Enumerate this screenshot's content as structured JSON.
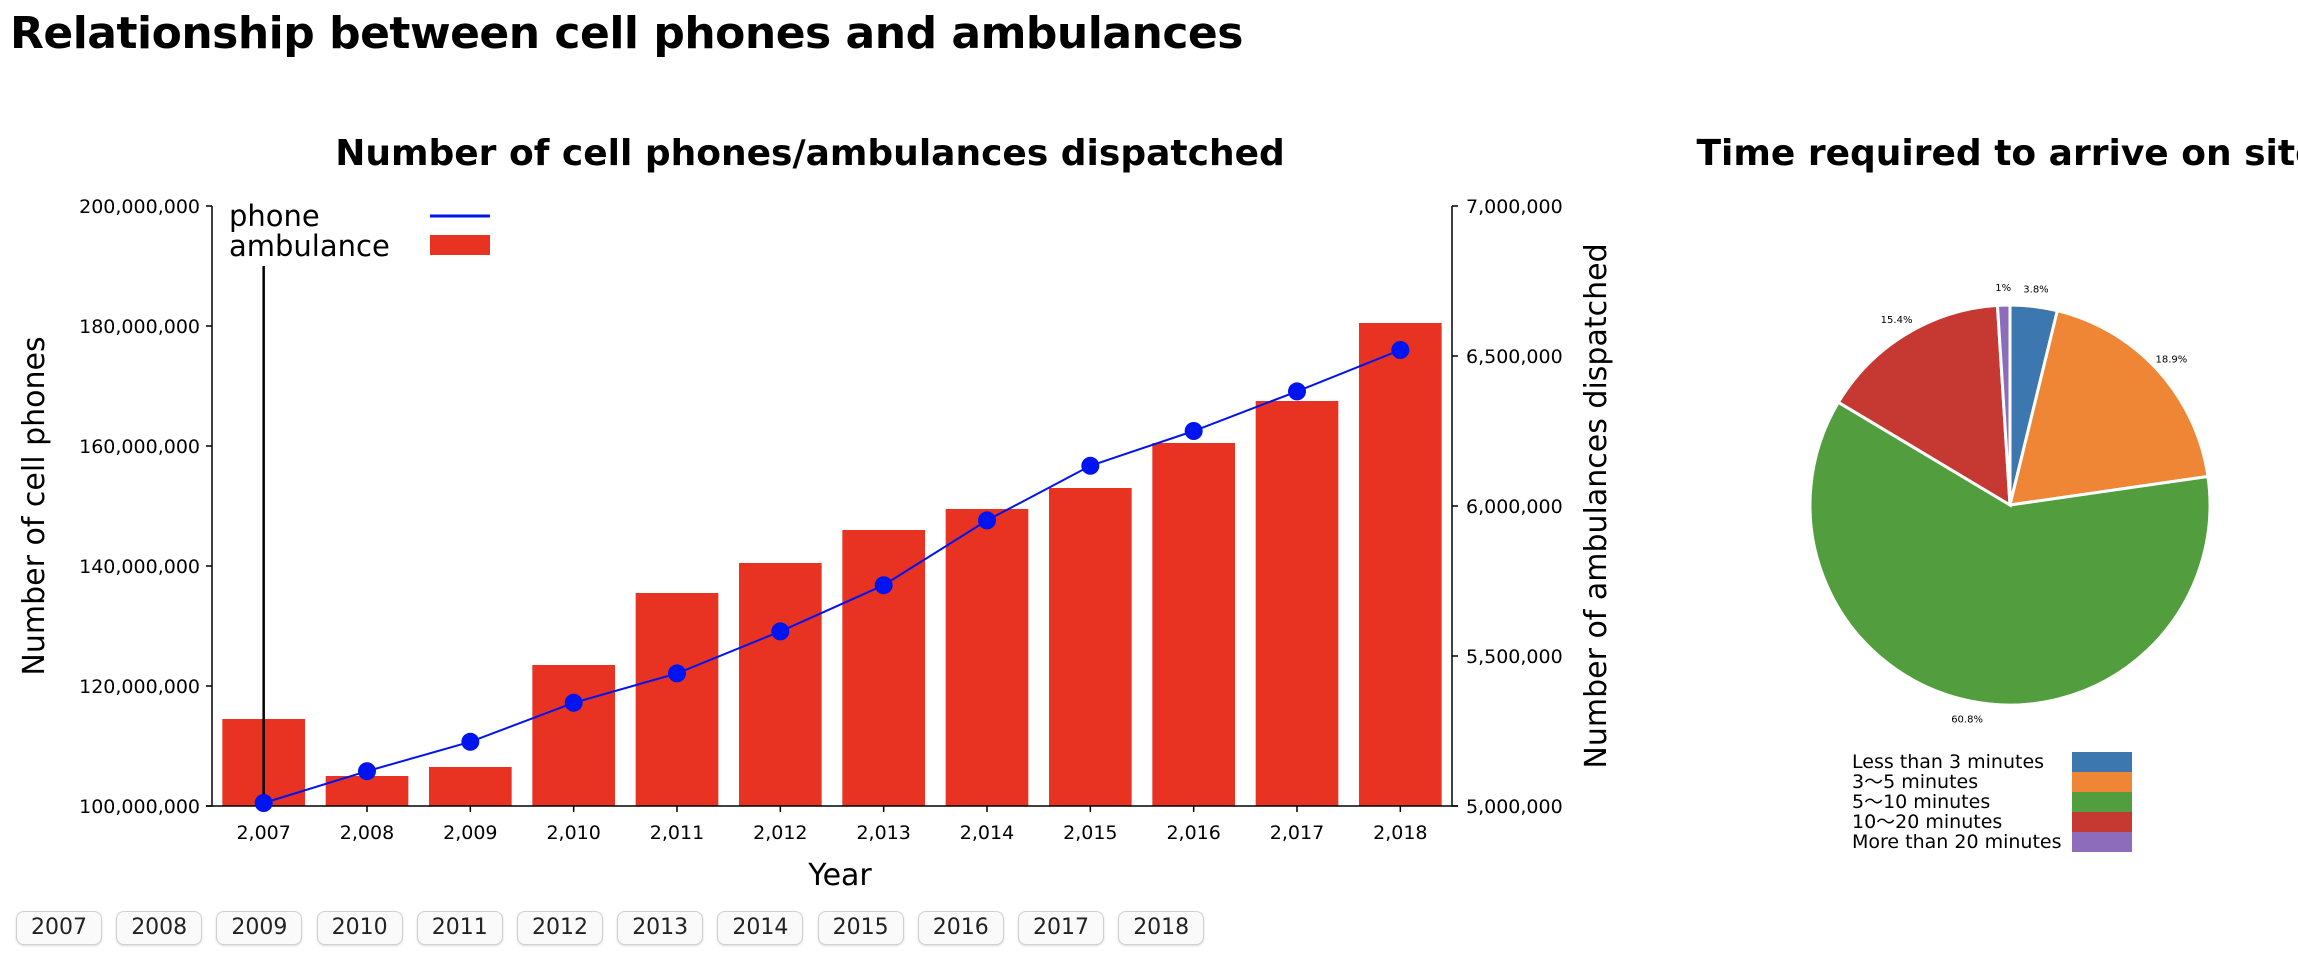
{
  "page": {
    "title": "Relationship between cell phones and ambulances"
  },
  "chart_data": [
    {
      "type": "bar+line",
      "title": "Number of cell phones/ambulances dispatched",
      "xlabel": "Year",
      "ylabel_left": "Number of cell phones",
      "ylabel_right": "Number of ambulances dispatched",
      "categories": [
        "2,007",
        "2,008",
        "2,009",
        "2,010",
        "2,011",
        "2,012",
        "2,013",
        "2,014",
        "2,015",
        "2,016",
        "2,017",
        "2,018"
      ],
      "ylim_left": [
        100000000,
        200000000
      ],
      "ylim_right": [
        5000000,
        7000000
      ],
      "yticks_left": [
        "100,000,000",
        "120,000,000",
        "140,000,000",
        "160,000,000",
        "180,000,000",
        "200,000,000"
      ],
      "yticks_right": [
        "5,000,000",
        "5,500,000",
        "6,000,000",
        "6,500,000",
        "7,000,000"
      ],
      "grid": false,
      "legend_position": "top-left",
      "highlight_marker": "2,007",
      "series": [
        {
          "name": "ambulance",
          "kind": "bar",
          "axis": "right",
          "color": "#e83323",
          "values": [
            5290000,
            5100000,
            5130000,
            5470000,
            5710000,
            5810000,
            5920000,
            5990000,
            6060000,
            6210000,
            6350000,
            6610000
          ]
        },
        {
          "name": "phone",
          "kind": "line",
          "axis": "left",
          "color": "#0014ef",
          "values": [
            100500000,
            105800000,
            110700000,
            117200000,
            122100000,
            129100000,
            136800000,
            147600000,
            156700000,
            162500000,
            169100000,
            176000000
          ]
        }
      ]
    },
    {
      "type": "pie",
      "title": "Time required to arrive on site",
      "legend_position": "bottom",
      "slices": [
        {
          "label": "Less than 3 minutes",
          "value": 3.8,
          "display": "3.8%",
          "color": "#3d77b0"
        },
        {
          "label": "3〜5 minutes",
          "value": 18.9,
          "display": "18.9%",
          "color": "#ef8636"
        },
        {
          "label": "5〜10 minutes",
          "value": 60.8,
          "display": "60.8%",
          "color": "#529e3f"
        },
        {
          "label": "10〜20 minutes",
          "value": 15.4,
          "display": "15.4%",
          "color": "#c53932"
        },
        {
          "label": "More than 20 minutes",
          "value": 1,
          "display": "1%",
          "color": "#8d6cbb"
        }
      ]
    }
  ],
  "year_buttons": [
    "2007",
    "2008",
    "2009",
    "2010",
    "2011",
    "2012",
    "2013",
    "2014",
    "2015",
    "2016",
    "2017",
    "2018"
  ]
}
